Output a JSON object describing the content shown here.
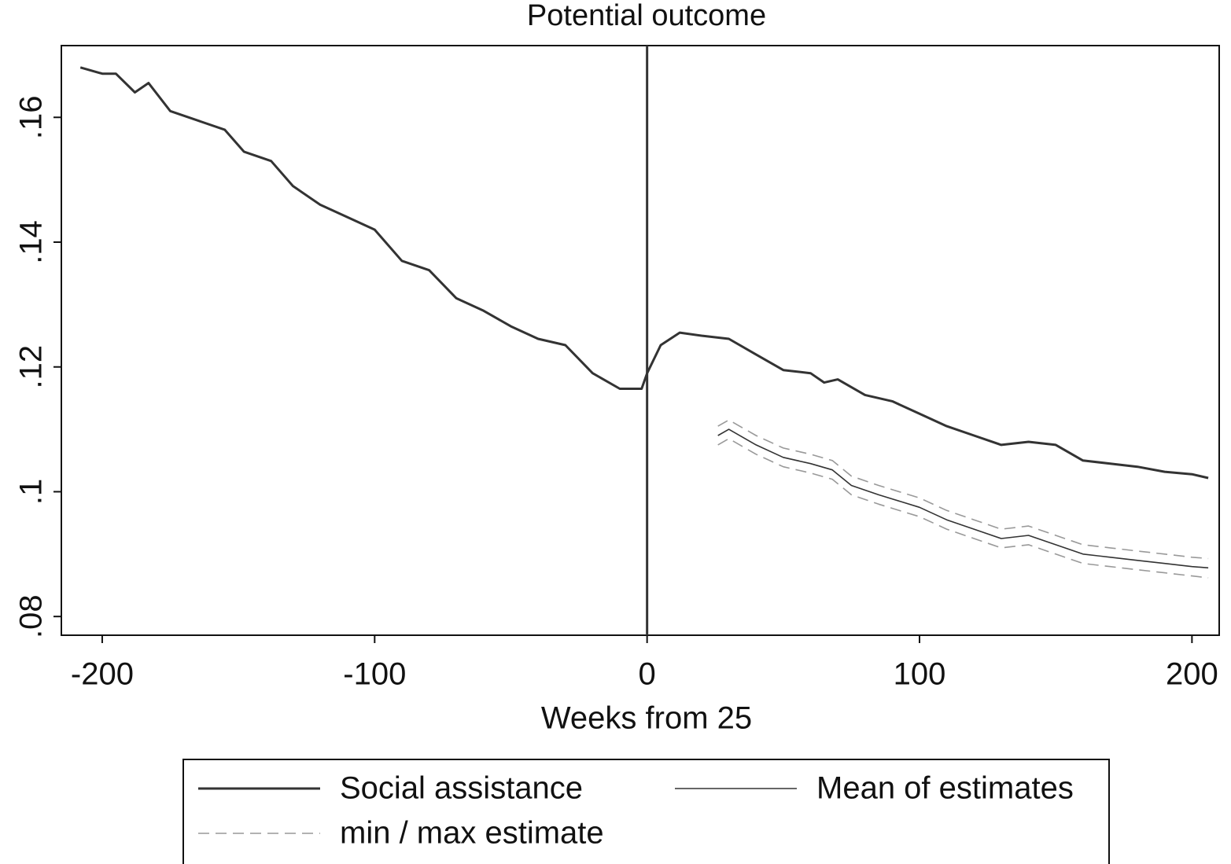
{
  "chart_data": {
    "type": "line",
    "title": "Potential outcome",
    "x_label": "Weeks from 25",
    "xlim": [
      -215,
      210
    ],
    "xticks": [
      -200,
      -100,
      0,
      100,
      200
    ],
    "ylim": [
      0.077,
      0.1715
    ],
    "yticks": [
      {
        "value": 0.08,
        "label": ".08"
      },
      {
        "value": 0.1,
        "label": ".1"
      },
      {
        "value": 0.12,
        "label": ".12"
      },
      {
        "value": 0.14,
        "label": ".14"
      },
      {
        "value": 0.16,
        "label": ".16"
      }
    ],
    "vline": 0,
    "series": [
      {
        "name": "Social assistance",
        "color": "#333333",
        "width": 3,
        "x": [
          -208,
          -200,
          -195,
          -188,
          -183,
          -175,
          -165,
          -155,
          -148,
          -138,
          -130,
          -120,
          -110,
          -100,
          -90,
          -80,
          -70,
          -60,
          -50,
          -40,
          -30,
          -20,
          -10,
          -2,
          0,
          5,
          12,
          20,
          30,
          40,
          50,
          60,
          65,
          70,
          80,
          90,
          100,
          110,
          120,
          130,
          140,
          150,
          160,
          170,
          180,
          190,
          200,
          206
        ],
        "values": [
          0.168,
          0.167,
          0.167,
          0.164,
          0.1655,
          0.161,
          0.1595,
          0.158,
          0.1545,
          0.153,
          0.149,
          0.146,
          0.144,
          0.142,
          0.137,
          0.1355,
          0.131,
          0.129,
          0.1265,
          0.1245,
          0.1235,
          0.119,
          0.1165,
          0.1165,
          0.119,
          0.1235,
          0.1255,
          0.125,
          0.1245,
          0.122,
          0.1195,
          0.119,
          0.1175,
          0.118,
          0.1155,
          0.1145,
          0.1125,
          0.1105,
          0.109,
          0.1075,
          0.108,
          0.1075,
          0.105,
          0.1045,
          0.104,
          0.1032,
          0.1028,
          0.1022
        ]
      },
      {
        "name": "Mean of estimates",
        "color": "#333333",
        "width": 1.6,
        "x": [
          26,
          30,
          40,
          50,
          60,
          68,
          75,
          85,
          100,
          110,
          120,
          130,
          140,
          150,
          160,
          170,
          180,
          190,
          200,
          206
        ],
        "values": [
          0.109,
          0.11,
          0.1075,
          0.1055,
          0.1045,
          0.1035,
          0.101,
          0.0995,
          0.0975,
          0.0955,
          0.094,
          0.0925,
          0.093,
          0.0915,
          0.09,
          0.0895,
          0.089,
          0.0885,
          0.088,
          0.0878
        ]
      },
      {
        "name": "min / max estimate",
        "color": "#999999",
        "width": 1.6,
        "dashed": true,
        "x": [
          26,
          30,
          40,
          50,
          60,
          68,
          75,
          85,
          100,
          110,
          120,
          130,
          140,
          150,
          160,
          170,
          180,
          190,
          200,
          206
        ],
        "lower": [
          0.1075,
          0.1085,
          0.106,
          0.104,
          0.103,
          0.102,
          0.0995,
          0.098,
          0.096,
          0.094,
          0.0925,
          0.091,
          0.0915,
          0.09,
          0.0885,
          0.088,
          0.0875,
          0.087,
          0.0865,
          0.0862
        ],
        "upper": [
          0.1105,
          0.1115,
          0.109,
          0.107,
          0.106,
          0.105,
          0.1025,
          0.101,
          0.099,
          0.097,
          0.0955,
          0.094,
          0.0945,
          0.093,
          0.0915,
          0.091,
          0.0905,
          0.09,
          0.0895,
          0.0893
        ]
      }
    ]
  }
}
